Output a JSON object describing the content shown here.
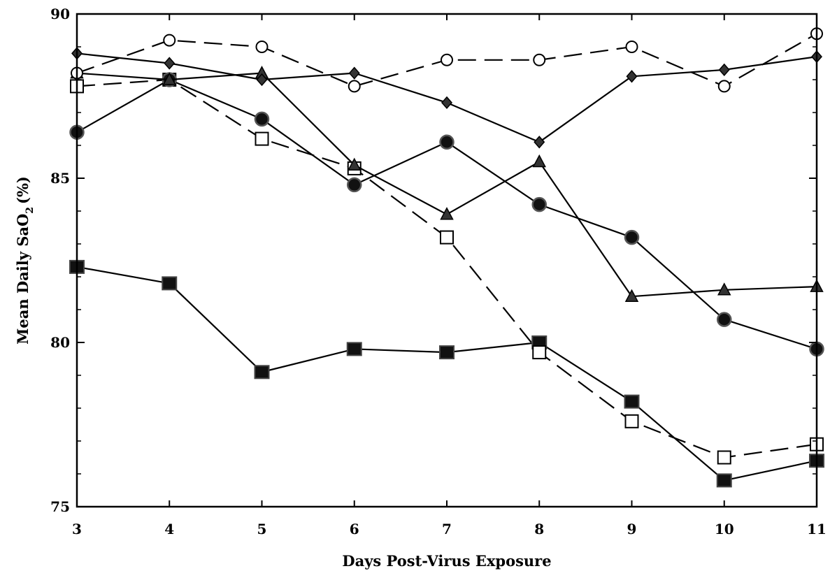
{
  "chart_data": {
    "type": "line",
    "xlabel": "Days Post-Virus Exposure",
    "ylabel": "Mean Daily SaO",
    "ylabel_subscript": "2",
    "ylabel_unit": "(%)",
    "x": [
      3,
      4,
      5,
      6,
      7,
      8,
      9,
      10,
      11
    ],
    "xlim": [
      3,
      11
    ],
    "ylim": [
      75,
      90
    ],
    "x_ticks": [
      3,
      4,
      5,
      6,
      7,
      8,
      9,
      10,
      11
    ],
    "y_ticks_labeled": [
      75,
      80,
      85,
      90
    ],
    "y_ticks_minor": [
      76,
      77,
      78,
      79,
      81,
      82,
      83,
      84,
      86,
      87,
      88,
      89
    ],
    "grid": false,
    "series": [
      {
        "marker": "open-circle",
        "line": "dashed",
        "values": [
          88.2,
          89.2,
          89.0,
          87.8,
          88.6,
          88.6,
          89.0,
          87.8,
          89.4
        ]
      },
      {
        "marker": "filled-diamond",
        "line": "solid",
        "values": [
          88.8,
          88.5,
          88.0,
          88.2,
          87.3,
          86.1,
          88.1,
          88.3,
          88.7
        ]
      },
      {
        "marker": "filled-triangle",
        "line": "solid",
        "values": [
          88.2,
          88.0,
          88.2,
          85.4,
          83.9,
          85.5,
          81.4,
          81.6,
          81.7
        ]
      },
      {
        "marker": "filled-circle",
        "line": "solid",
        "values": [
          86.4,
          88.0,
          86.8,
          84.8,
          86.1,
          84.2,
          83.2,
          80.7,
          79.8
        ]
      },
      {
        "marker": "open-square",
        "line": "dashed",
        "values": [
          87.8,
          88.0,
          86.2,
          85.3,
          83.2,
          79.7,
          77.6,
          76.5,
          76.9
        ]
      },
      {
        "marker": "filled-square",
        "line": "solid",
        "values": [
          82.3,
          81.8,
          79.1,
          79.8,
          79.7,
          80.0,
          78.2,
          75.8,
          76.4
        ]
      }
    ]
  }
}
